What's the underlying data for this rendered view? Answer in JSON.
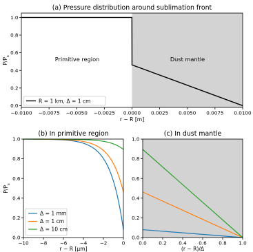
{
  "chart_data": [
    {
      "type": "line",
      "title": "(a) Pressure distribution around sublimation front",
      "xlabel": "r − R [m]",
      "ylabel": "P/P_s",
      "xlim": [
        -0.01,
        0.01
      ],
      "ylim": [
        -0.02,
        1.05
      ],
      "xticks": [
        "−0.0100",
        "−0.0075",
        "−0.0050",
        "−0.0025",
        "0.0000",
        "0.0025",
        "0.0050",
        "0.0075",
        "0.0100"
      ],
      "yticks": [
        "0.0",
        "0.2",
        "0.4",
        "0.6",
        "0.8",
        "1.0"
      ],
      "shaded_region": {
        "x_from": 0,
        "x_to": 0.01,
        "color": "#d3d3d3"
      },
      "annotations": [
        "Primitive region",
        "Dust mantle"
      ],
      "series": [
        {
          "name": "R = 1 km, Δ = 1 cm",
          "color": "#000000",
          "x": [
            -0.01,
            -1e-05,
            0,
            0.01
          ],
          "y": [
            1.0,
            1.0,
            0.4625,
            0.0
          ]
        }
      ],
      "legend_position": "lower-left",
      "grid": false
    },
    {
      "type": "line",
      "title": "(b) In primitive region",
      "xlabel": "r − R [μm]",
      "ylabel": "P/P_s",
      "xlim": [
        -10,
        0
      ],
      "ylim": [
        0,
        1.0
      ],
      "xticks": [
        "−10",
        "−8",
        "−6",
        "−4",
        "−2",
        "0"
      ],
      "yticks": [
        "0.0",
        "0.2",
        "0.4",
        "0.6",
        "0.8",
        "1.0"
      ],
      "series": [
        {
          "name": "Δ = 1 mm",
          "color": "#1f77b4",
          "end_value": 0.08,
          "decay_length_um": 1.3
        },
        {
          "name": "Δ = 1 cm",
          "color": "#ff7f0e",
          "end_value": 0.4625,
          "decay_length_um": 1.3
        },
        {
          "name": "Δ = 10 cm",
          "color": "#2ca02c",
          "end_value": 0.895,
          "decay_length_um": 1.3
        }
      ],
      "legend_position": "lower-left",
      "grid": false
    },
    {
      "type": "line",
      "title": "(c) In dust mantle",
      "xlabel": "(r − R)/Δ",
      "ylabel": "",
      "xlim": [
        0,
        1
      ],
      "ylim": [
        0,
        1.0
      ],
      "xticks": [
        "0.0",
        "0.2",
        "0.4",
        "0.6",
        "0.8",
        "1.0"
      ],
      "yticks": [
        "0.0",
        "0.2",
        "0.4",
        "0.6",
        "0.8",
        "1.0"
      ],
      "background": "#d3d3d3",
      "series": [
        {
          "name": "Δ = 1 mm",
          "color": "#1f77b4",
          "x": [
            0,
            1
          ],
          "y": [
            0.08,
            0.0
          ]
        },
        {
          "name": "Δ = 1 cm",
          "color": "#ff7f0e",
          "x": [
            0,
            1
          ],
          "y": [
            0.4625,
            0.0
          ]
        },
        {
          "name": "Δ = 10 cm",
          "color": "#2ca02c",
          "x": [
            0,
            1
          ],
          "y": [
            0.895,
            0.0
          ]
        }
      ],
      "grid": false
    }
  ]
}
